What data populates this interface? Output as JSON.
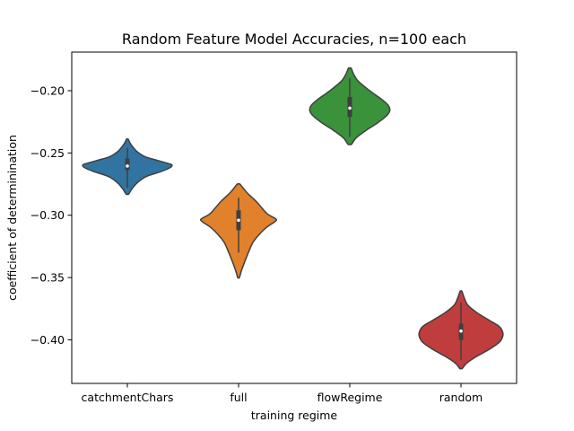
{
  "chart_data": {
    "type": "violin",
    "title": "Random Feature Model Accuracies, n=100 each",
    "xlabel": "training regime",
    "ylabel": "coefficient of determinination",
    "categories": [
      "catchmentChars",
      "full",
      "flowRegime",
      "random"
    ],
    "ylim": [
      -0.435,
      -0.169
    ],
    "yticks": [
      -0.4,
      -0.35,
      -0.3,
      -0.25,
      -0.2
    ],
    "ytick_labels": [
      "−0.40",
      "−0.35",
      "−0.30",
      "−0.25",
      "−0.20"
    ],
    "grid": false,
    "legend": "none",
    "violins": [
      {
        "category": "catchmentChars",
        "color": "#3274a1",
        "min": -0.283,
        "max": -0.239,
        "q1": -0.2635,
        "median": -0.2605,
        "q3": -0.2545,
        "whisker_low": -0.278,
        "whisker_high": -0.246,
        "profile": [
          [
            -0.283,
            0.03
          ],
          [
            -0.279,
            0.1
          ],
          [
            -0.274,
            0.22
          ],
          [
            -0.269,
            0.42
          ],
          [
            -0.265,
            0.75
          ],
          [
            -0.262,
            0.95
          ],
          [
            -0.2605,
            1.0
          ],
          [
            -0.259,
            0.97
          ],
          [
            -0.256,
            0.68
          ],
          [
            -0.253,
            0.4
          ],
          [
            -0.249,
            0.22
          ],
          [
            -0.245,
            0.12
          ],
          [
            -0.242,
            0.06
          ],
          [
            -0.239,
            0.02
          ]
        ]
      },
      {
        "category": "full",
        "color": "#e1812c",
        "min": -0.35,
        "max": -0.275,
        "q1": -0.312,
        "median": -0.304,
        "q3": -0.296,
        "whisker_low": -0.33,
        "whisker_high": -0.286,
        "profile": [
          [
            -0.35,
            0.02
          ],
          [
            -0.345,
            0.06
          ],
          [
            -0.338,
            0.13
          ],
          [
            -0.33,
            0.22
          ],
          [
            -0.322,
            0.32
          ],
          [
            -0.316,
            0.45
          ],
          [
            -0.31,
            0.62
          ],
          [
            -0.305,
            0.82
          ],
          [
            -0.303,
            0.84
          ],
          [
            -0.299,
            0.65
          ],
          [
            -0.294,
            0.52
          ],
          [
            -0.289,
            0.4
          ],
          [
            -0.283,
            0.22
          ],
          [
            -0.279,
            0.12
          ],
          [
            -0.275,
            0.03
          ]
        ]
      },
      {
        "category": "flowRegime",
        "color": "#3a923a",
        "min": -0.243,
        "max": -0.182,
        "q1": -0.221,
        "median": -0.214,
        "q3": -0.205,
        "whisker_low": -0.237,
        "whisker_high": -0.19,
        "profile": [
          [
            -0.243,
            0.04
          ],
          [
            -0.238,
            0.14
          ],
          [
            -0.232,
            0.36
          ],
          [
            -0.226,
            0.62
          ],
          [
            -0.22,
            0.83
          ],
          [
            -0.216,
            0.9
          ],
          [
            -0.212,
            0.87
          ],
          [
            -0.207,
            0.72
          ],
          [
            -0.202,
            0.52
          ],
          [
            -0.197,
            0.34
          ],
          [
            -0.192,
            0.18
          ],
          [
            -0.187,
            0.09
          ],
          [
            -0.182,
            0.03
          ]
        ]
      },
      {
        "category": "random",
        "color": "#c03d3e",
        "min": -0.423,
        "max": -0.361,
        "q1": -0.4,
        "median": -0.393,
        "q3": -0.387,
        "whisker_low": -0.416,
        "whisker_high": -0.37,
        "profile": [
          [
            -0.423,
            0.03
          ],
          [
            -0.419,
            0.12
          ],
          [
            -0.414,
            0.32
          ],
          [
            -0.408,
            0.62
          ],
          [
            -0.402,
            0.86
          ],
          [
            -0.397,
            0.94
          ],
          [
            -0.393,
            0.93
          ],
          [
            -0.389,
            0.85
          ],
          [
            -0.384,
            0.62
          ],
          [
            -0.378,
            0.35
          ],
          [
            -0.372,
            0.15
          ],
          [
            -0.366,
            0.07
          ],
          [
            -0.361,
            0.02
          ]
        ]
      }
    ]
  }
}
